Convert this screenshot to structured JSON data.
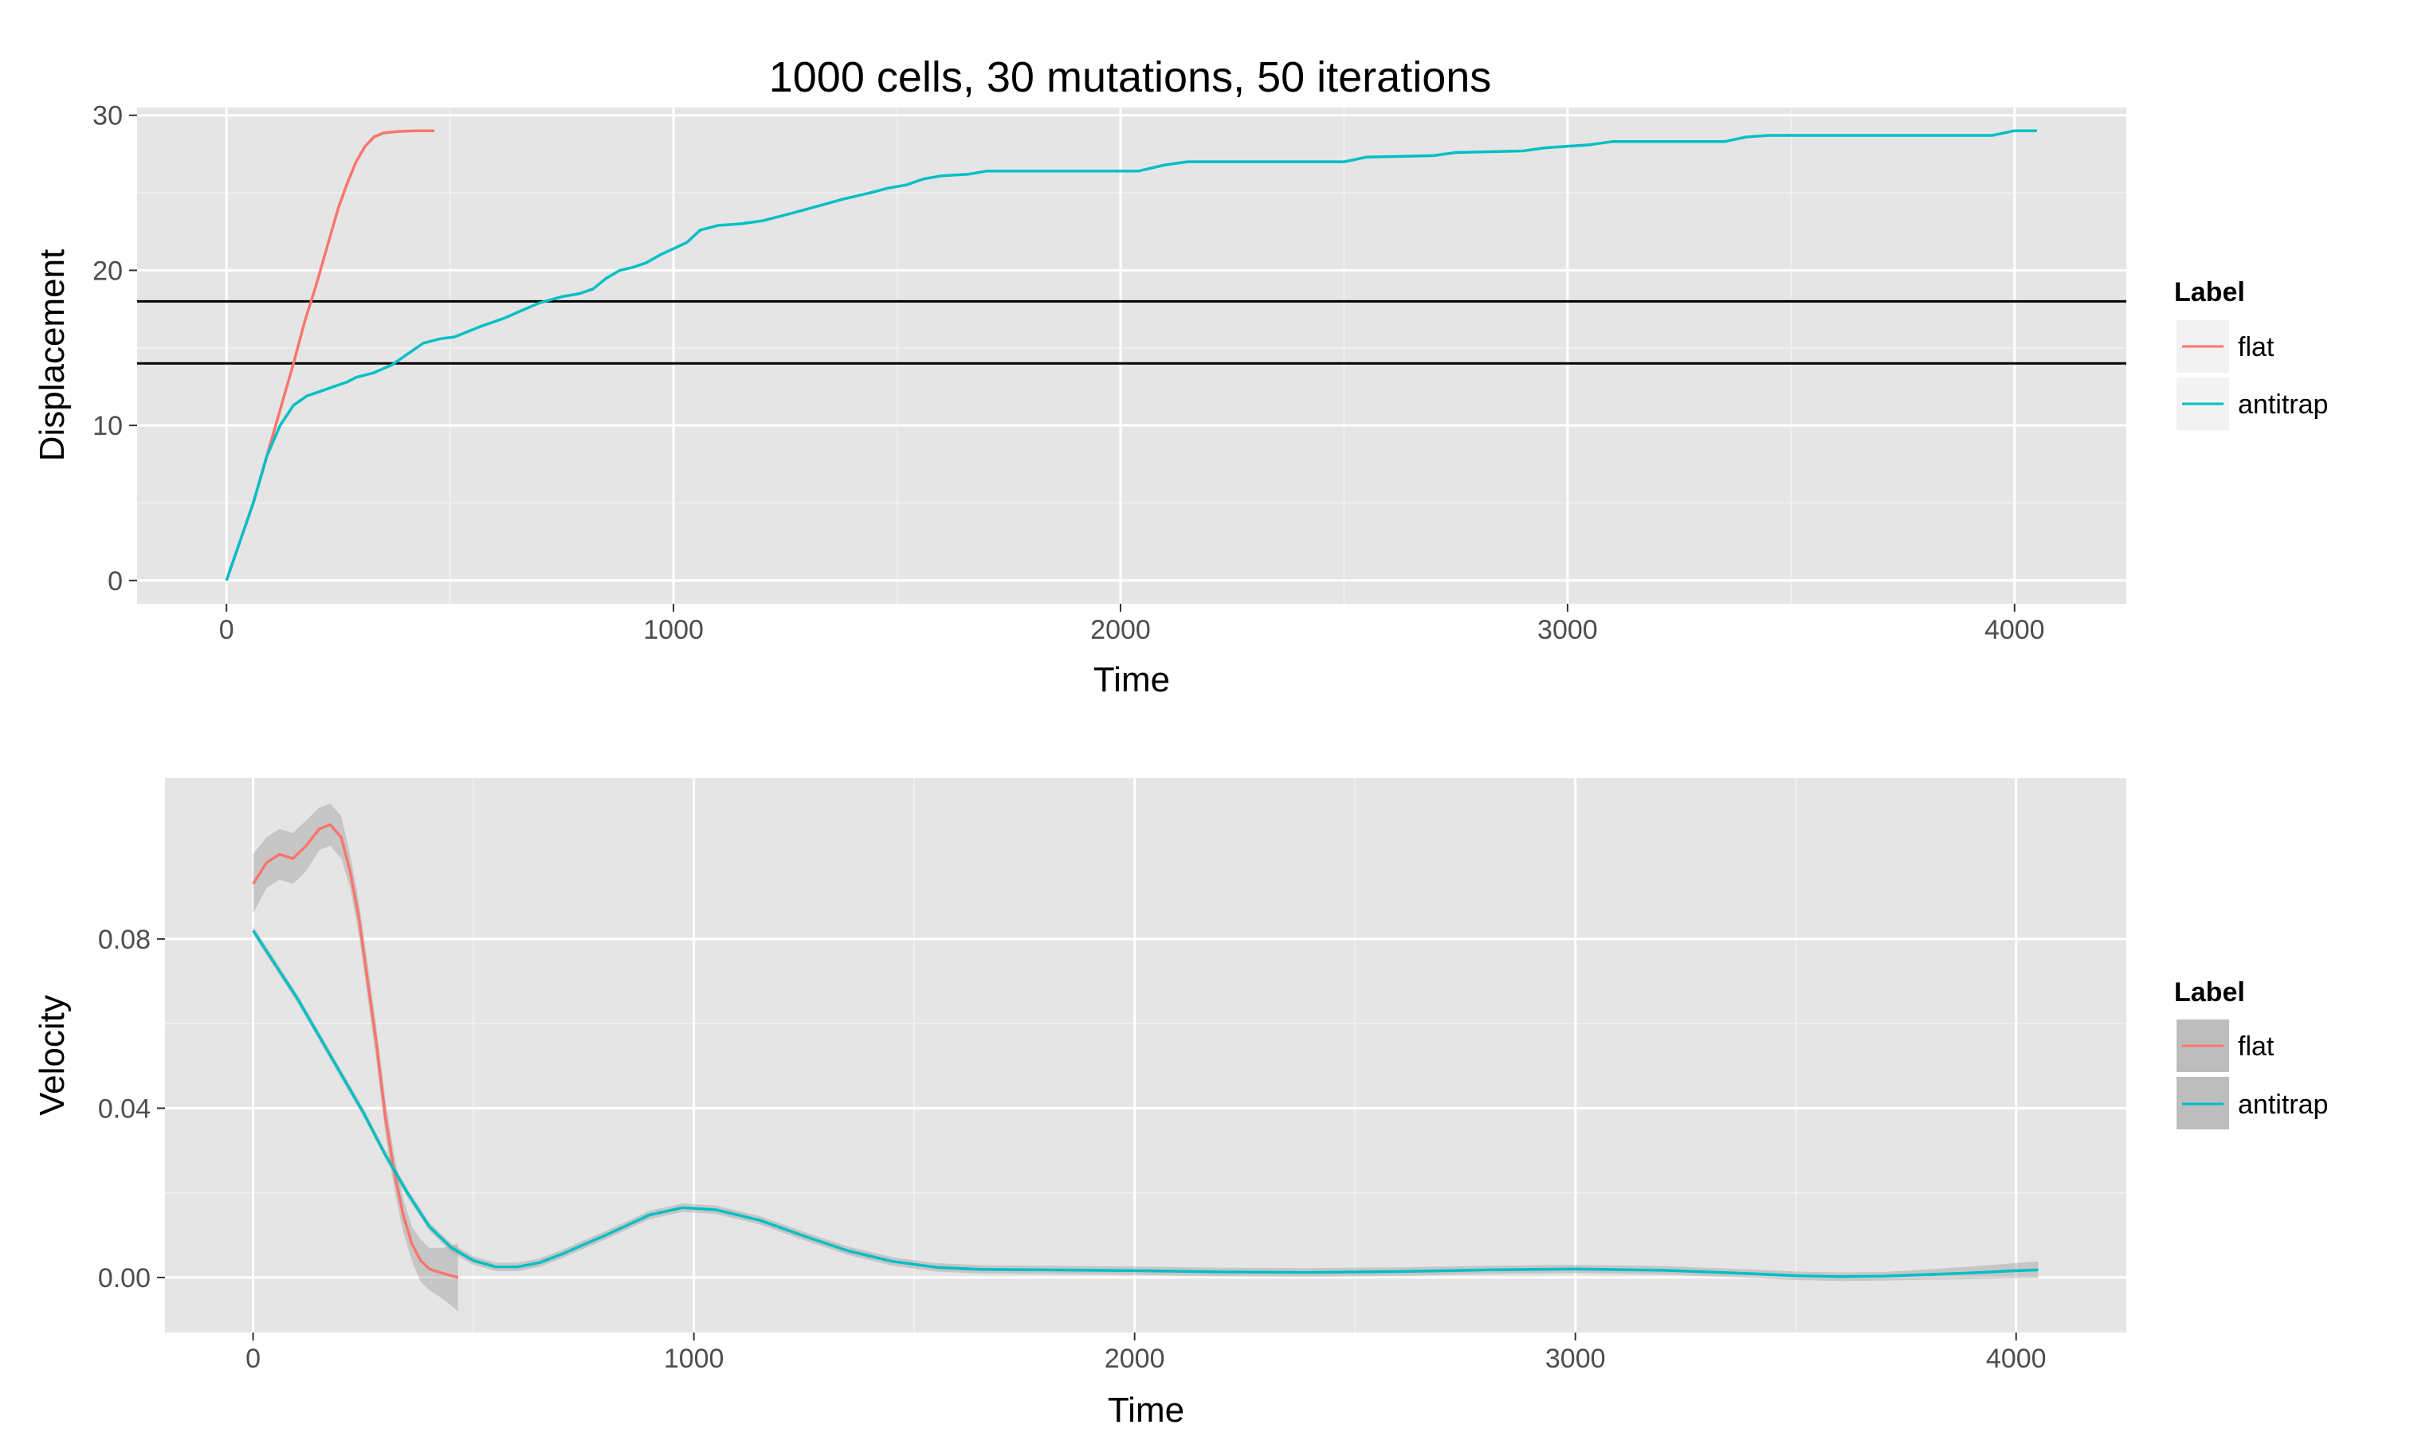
{
  "title": "1000 cells, 30 mutations, 50 iterations",
  "colors": {
    "flat": "#F8766D",
    "antitrap": "#00BFC4",
    "panel_background": "#E5E5E5",
    "grid": "#FFFFFF",
    "ribbon": "#BDBDBD",
    "hline": "#000000"
  },
  "legend": {
    "title": "Label",
    "entries": [
      {
        "label": "flat",
        "color": "#F8766D"
      },
      {
        "label": "antitrap",
        "color": "#00BFC4"
      }
    ]
  },
  "chart_data": [
    {
      "type": "line",
      "title": "1000 cells, 30 mutations, 50 iterations",
      "xlabel": "Time",
      "ylabel": "Displacement",
      "xlim": [
        -200,
        4250
      ],
      "ylim": [
        -1.5,
        30.5
      ],
      "xticks": [
        0,
        1000,
        2000,
        3000,
        4000
      ],
      "xtick_labels": [
        "0",
        "1000",
        "2000",
        "3000",
        "4000"
      ],
      "yticks": [
        0,
        10,
        20,
        30
      ],
      "ytick_labels": [
        "0",
        "10",
        "20",
        "30"
      ],
      "grid": true,
      "legend_position": "right",
      "hlines": [
        18,
        14
      ],
      "series": [
        {
          "name": "flat",
          "color": "#F8766D",
          "points": [
            [
              0,
              0
            ],
            [
              30,
              2.5
            ],
            [
              60,
              5
            ],
            [
              90,
              8
            ],
            [
              120,
              11
            ],
            [
              150,
              14
            ],
            [
              175,
              16.7
            ],
            [
              200,
              19
            ],
            [
              225,
              21.5
            ],
            [
              250,
              24
            ],
            [
              270,
              25.6
            ],
            [
              290,
              27
            ],
            [
              310,
              28
            ],
            [
              330,
              28.6
            ],
            [
              350,
              28.85
            ],
            [
              380,
              28.95
            ],
            [
              420,
              29
            ],
            [
              465,
              29
            ]
          ]
        },
        {
          "name": "antitrap",
          "color": "#00BFC4",
          "points": [
            [
              0,
              0
            ],
            [
              30,
              2.5
            ],
            [
              60,
              5
            ],
            [
              90,
              8
            ],
            [
              120,
              10
            ],
            [
              150,
              11.3
            ],
            [
              180,
              11.9
            ],
            [
              210,
              12.2
            ],
            [
              240,
              12.5
            ],
            [
              270,
              12.8
            ],
            [
              290,
              13.1
            ],
            [
              330,
              13.4
            ],
            [
              370,
              13.9
            ],
            [
              400,
              14.5
            ],
            [
              440,
              15.3
            ],
            [
              480,
              15.6
            ],
            [
              510,
              15.7
            ],
            [
              570,
              16.4
            ],
            [
              620,
              16.9
            ],
            [
              660,
              17.4
            ],
            [
              700,
              17.9
            ],
            [
              750,
              18.3
            ],
            [
              790,
              18.5
            ],
            [
              820,
              18.8
            ],
            [
              850,
              19.5
            ],
            [
              880,
              20
            ],
            [
              910,
              20.2
            ],
            [
              940,
              20.5
            ],
            [
              970,
              21
            ],
            [
              1000,
              21.4
            ],
            [
              1030,
              21.8
            ],
            [
              1060,
              22.6
            ],
            [
              1100,
              22.9
            ],
            [
              1150,
              23
            ],
            [
              1200,
              23.2
            ],
            [
              1240,
              23.5
            ],
            [
              1280,
              23.8
            ],
            [
              1330,
              24.2
            ],
            [
              1380,
              24.6
            ],
            [
              1440,
              25
            ],
            [
              1480,
              25.3
            ],
            [
              1520,
              25.5
            ],
            [
              1560,
              25.9
            ],
            [
              1600,
              26.1
            ],
            [
              1660,
              26.2
            ],
            [
              1700,
              26.4
            ],
            [
              2040,
              26.4
            ],
            [
              2100,
              26.8
            ],
            [
              2150,
              27
            ],
            [
              2500,
              27
            ],
            [
              2550,
              27.3
            ],
            [
              2700,
              27.4
            ],
            [
              2750,
              27.6
            ],
            [
              2900,
              27.7
            ],
            [
              2950,
              27.9
            ],
            [
              3050,
              28.1
            ],
            [
              3100,
              28.3
            ],
            [
              3350,
              28.3
            ],
            [
              3400,
              28.6
            ],
            [
              3450,
              28.7
            ],
            [
              3950,
              28.7
            ],
            [
              4000,
              29
            ],
            [
              4050,
              29
            ]
          ]
        }
      ]
    },
    {
      "type": "line",
      "xlabel": "Time",
      "ylabel": "Velocity",
      "xlim": [
        -200,
        4250
      ],
      "ylim": [
        -0.013,
        0.118
      ],
      "xticks": [
        0,
        1000,
        2000,
        3000,
        4000
      ],
      "xtick_labels": [
        "0",
        "1000",
        "2000",
        "3000",
        "4000"
      ],
      "yticks": [
        0,
        0.04,
        0.08
      ],
      "ytick_labels": [
        "0.00",
        "0.04",
        "0.08"
      ],
      "grid": true,
      "legend_position": "right",
      "series": [
        {
          "name": "flat",
          "color": "#F8766D",
          "points": [
            [
              0,
              0.093
            ],
            [
              30,
              0.098
            ],
            [
              60,
              0.1
            ],
            [
              90,
              0.099
            ],
            [
              120,
              0.102
            ],
            [
              150,
              0.106
            ],
            [
              175,
              0.107
            ],
            [
              200,
              0.104
            ],
            [
              220,
              0.096
            ],
            [
              240,
              0.085
            ],
            [
              260,
              0.07
            ],
            [
              280,
              0.055
            ],
            [
              300,
              0.038
            ],
            [
              320,
              0.025
            ],
            [
              340,
              0.015
            ],
            [
              360,
              0.008
            ],
            [
              380,
              0.004
            ],
            [
              400,
              0.002
            ],
            [
              430,
              0.001
            ],
            [
              465,
              0
            ]
          ],
          "ribbon_halfwidth": [
            0.007,
            0.006,
            0.006,
            0.006,
            0.006,
            0.005,
            0.005,
            0.005,
            0.004,
            0.004,
            0.004,
            0.004,
            0.004,
            0.004,
            0.004,
            0.004,
            0.005,
            0.005,
            0.006,
            0.008
          ]
        },
        {
          "name": "antitrap",
          "color": "#00BFC4",
          "points": [
            [
              0,
              0.082
            ],
            [
              50,
              0.074
            ],
            [
              100,
              0.066
            ],
            [
              150,
              0.057
            ],
            [
              200,
              0.048
            ],
            [
              250,
              0.039
            ],
            [
              300,
              0.029
            ],
            [
              350,
              0.02
            ],
            [
              400,
              0.012
            ],
            [
              450,
              0.007
            ],
            [
              500,
              0.004
            ],
            [
              550,
              0.0025
            ],
            [
              600,
              0.0025
            ],
            [
              650,
              0.0035
            ],
            [
              700,
              0.0055
            ],
            [
              800,
              0.01
            ],
            [
              900,
              0.0148
            ],
            [
              975,
              0.0165
            ],
            [
              1050,
              0.016
            ],
            [
              1150,
              0.0135
            ],
            [
              1250,
              0.0098
            ],
            [
              1350,
              0.0063
            ],
            [
              1450,
              0.0038
            ],
            [
              1550,
              0.0024
            ],
            [
              1650,
              0.0019
            ],
            [
              1800,
              0.0018
            ],
            [
              2000,
              0.0016
            ],
            [
              2200,
              0.0013
            ],
            [
              2400,
              0.0012
            ],
            [
              2600,
              0.0014
            ],
            [
              2800,
              0.0018
            ],
            [
              3000,
              0.002
            ],
            [
              3200,
              0.0017
            ],
            [
              3400,
              0.0009
            ],
            [
              3500,
              0.0004
            ],
            [
              3600,
              0.0002
            ],
            [
              3700,
              0.0003
            ],
            [
              3800,
              0.0007
            ],
            [
              3900,
              0.0011
            ],
            [
              4000,
              0.0016
            ],
            [
              4050,
              0.0018
            ]
          ],
          "ribbon_halfwidth": [
            0.001,
            0.001,
            0.001,
            0.001,
            0.001,
            0.001,
            0.001,
            0.001,
            0.001,
            0.001,
            0.001,
            0.001,
            0.001,
            0.001,
            0.001,
            0.001,
            0.001,
            0.001,
            0.001,
            0.001,
            0.001,
            0.001,
            0.001,
            0.001,
            0.001,
            0.001,
            0.001,
            0.001,
            0.001,
            0.001,
            0.001,
            0.001,
            0.001,
            0.001,
            0.001,
            0.001,
            0.001,
            0.0012,
            0.0015,
            0.0018,
            0.002
          ]
        }
      ]
    }
  ]
}
